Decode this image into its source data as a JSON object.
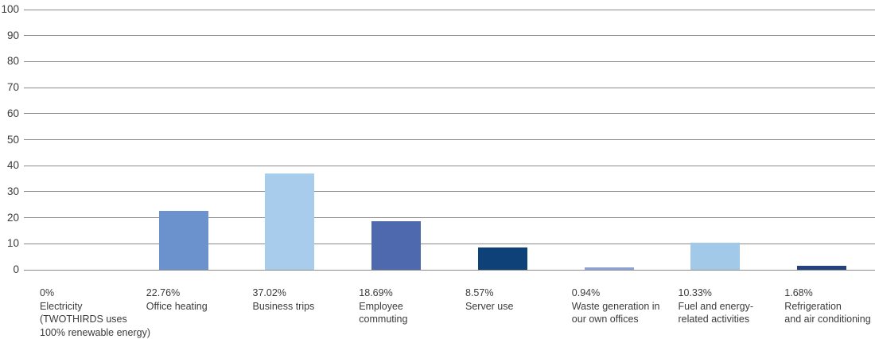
{
  "chart_data": {
    "type": "bar",
    "title": "",
    "xlabel": "",
    "ylabel": "",
    "ylim": [
      0,
      100
    ],
    "yticks": [
      0,
      10,
      20,
      30,
      40,
      50,
      60,
      70,
      80,
      90,
      100
    ],
    "grid": true,
    "legend": false,
    "categories": [
      "0% Electricity (TWOTHIRDS uses 100% renewable energy)",
      "22.76% Office heating",
      "37.02% Business trips",
      "18.69% Employee commuting",
      "8.57% Server use",
      "0.94% Waste generation in our own offices",
      "10.33% Fuel and energy-related activities",
      "1.68% Refrigeration and air conditioning"
    ],
    "values": [
      0,
      22.76,
      37.02,
      18.69,
      8.57,
      0.94,
      10.33,
      1.68
    ],
    "bar_colors": [
      null,
      "#6b92cd",
      "#a8cdec",
      "#4e69ae",
      "#0e4178",
      "#8ba3d8",
      "#a3c9e9",
      "#24427e"
    ],
    "slugs": [
      "electricity",
      "office-heating",
      "business-trips",
      "employee-commuting",
      "server-use",
      "waste-generation",
      "fuel-energy-related",
      "refrigeration-air-conditioning"
    ],
    "category_label_lines": [
      [
        "0%",
        "Electricity",
        "(TWOTHIRDS uses",
        "100% renewable energy)"
      ],
      [
        "22.76%",
        "Office heating"
      ],
      [
        "37.02%",
        "Business trips"
      ],
      [
        "18.69%",
        "Employee",
        "commuting"
      ],
      [
        "8.57%",
        "Server use"
      ],
      [
        "0.94%",
        "Waste generation in",
        "our own offices"
      ],
      [
        "10.33%",
        "Fuel and energy-",
        "related activities"
      ],
      [
        "1.68%",
        "Refrigeration",
        "and air conditioning"
      ]
    ],
    "colors": {
      "gridline": "#8c8c8c",
      "text": "#3b3b3a",
      "background": "#ffffff"
    }
  }
}
